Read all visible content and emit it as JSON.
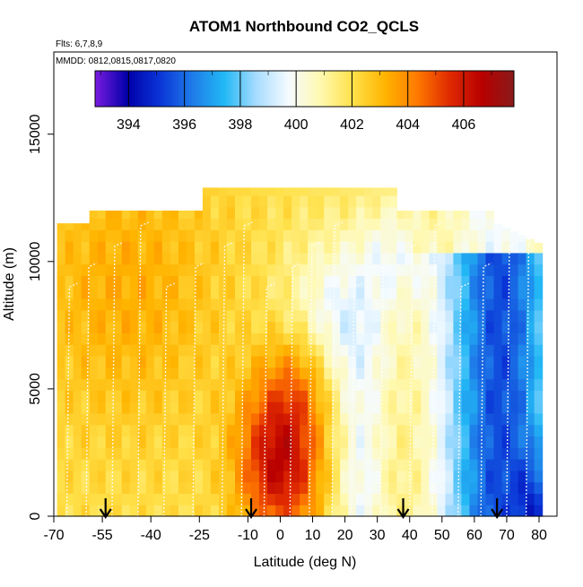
{
  "chart_data": {
    "type": "heatmap",
    "title": "ATOM1 Northbound CO2_QCLS",
    "flights_label": "Flts: 6,7,8,9",
    "dates_label": "MMDD: 0812,0815,0817,0820",
    "xlabel": "Latitude (deg N)",
    "ylabel": "Altitude (m)",
    "x_ticks": [
      -70,
      -55,
      -40,
      -25,
      -10,
      0,
      10,
      20,
      30,
      40,
      50,
      60,
      70,
      80
    ],
    "x_tick_labels": [
      "-70",
      "-55",
      "-40",
      "-25",
      "-10",
      "0",
      "10",
      "20",
      "30",
      "40",
      "50",
      "60",
      "70",
      "80"
    ],
    "y_ticks": [
      0,
      5000,
      10000,
      15000
    ],
    "y_tick_labels": [
      "0",
      "5000",
      "10000",
      "15000"
    ],
    "colorbar": {
      "min": 392.8,
      "max": 407.8,
      "ticks": [
        394,
        396,
        398,
        400,
        402,
        404,
        406
      ],
      "tick_labels": [
        "394",
        "396",
        "398",
        "400",
        "402",
        "404",
        "406"
      ],
      "colors": [
        "#7a1be0",
        "#0000a8",
        "#0a34d6",
        "#1e7ae8",
        "#22b8f5",
        "#a8dcff",
        "#f5fbff",
        "#fff9b0",
        "#ffe14a",
        "#ffb400",
        "#ff7a00",
        "#e02a00",
        "#b80000",
        "#8a1a1a"
      ]
    },
    "arrows_latitude": [
      -54,
      -9,
      38,
      67
    ],
    "data_extent": {
      "lat_min": -69,
      "lat_max": 80,
      "alt_min": 0,
      "alt_max": 12900
    }
  }
}
